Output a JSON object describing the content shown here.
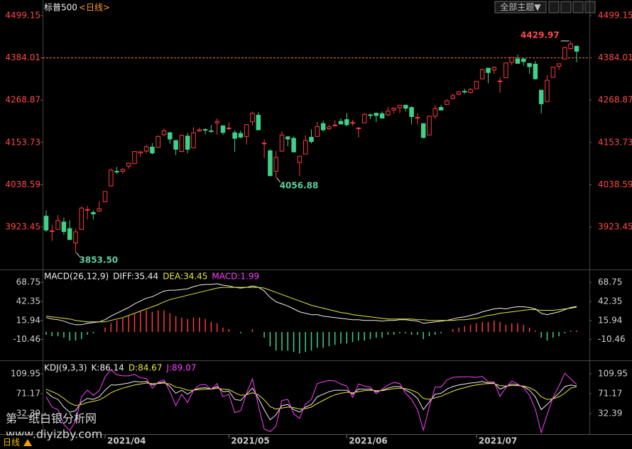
{
  "header": {
    "symbol": "标普500",
    "period": "<日线>",
    "theme_button": "全部主题▼"
  },
  "period_tab": "日线",
  "watermark": [
    "第一纸白银分析网",
    "www.diyizby.com"
  ],
  "chart_data": [
    {
      "type": "candlestick",
      "open": [
        3953,
        3913,
        3917,
        3937,
        3919,
        3880,
        3917,
        3969,
        3963,
        3967,
        3992,
        4035,
        4075,
        4075,
        4089,
        4096,
        4125,
        4130,
        4141,
        4140,
        4175,
        4180,
        4159,
        4129,
        4171,
        4139,
        4185,
        4189,
        4185,
        4207,
        4199,
        4191,
        4180,
        4178,
        4170,
        4210,
        4228,
        4150,
        4131,
        4075,
        4130,
        4169,
        4165,
        4099,
        4122,
        4168,
        4170,
        4205,
        4191,
        4201,
        4211,
        4216,
        4207,
        4191,
        4207,
        4229,
        4233,
        4232,
        4229,
        4242,
        4248,
        4255,
        4249,
        4220,
        4205,
        4174,
        4225,
        4249,
        4257,
        4274,
        4285,
        4293,
        4290,
        4300,
        4327,
        4356,
        4351,
        4321,
        4330,
        4372,
        4381,
        4381,
        4369,
        4367,
        4296,
        4265,
        4331,
        4361,
        4381,
        4409,
        4416
      ],
      "high": [
        3969,
        3930,
        3956,
        3949,
        3942,
        3919,
        3979,
        3981,
        3969,
        3994,
        4021,
        4083,
        4087,
        4084,
        4098,
        4129,
        4131,
        4148,
        4152,
        4173,
        4191,
        4183,
        4160,
        4175,
        4180,
        4195,
        4194,
        4193,
        4201,
        4219,
        4199,
        4209,
        4187,
        4186,
        4202,
        4238,
        4236,
        4162,
        4135,
        4131,
        4184,
        4171,
        4170,
        4117,
        4173,
        4189,
        4210,
        4213,
        4202,
        4214,
        4219,
        4234,
        4216,
        4196,
        4234,
        4232,
        4236,
        4238,
        4250,
        4249,
        4255,
        4257,
        4252,
        4233,
        4206,
        4226,
        4256,
        4256,
        4271,
        4287,
        4293,
        4300,
        4302,
        4320,
        4355,
        4357,
        4362,
        4331,
        4372,
        4386,
        4393,
        4382,
        4369,
        4376,
        4297,
        4337,
        4359,
        4369,
        4415,
        4429.97,
        4416
      ],
      "low": [
        3910,
        3886,
        3917,
        3902,
        3889,
        3853.5,
        3917,
        3944,
        3944,
        3964,
        3992,
        4035,
        4068,
        4069,
        4082,
        4095,
        4114,
        4125,
        4121,
        4140,
        4171,
        4150,
        4119,
        4127,
        4124,
        4139,
        4182,
        4176,
        4181,
        4175,
        4174,
        4188,
        4128,
        4165,
        4148,
        4201,
        4188,
        4111,
        4062,
        4056.88,
        4130,
        4143,
        4126,
        4062,
        4122,
        4151,
        4170,
        4183,
        4188,
        4197,
        4204,
        4197,
        4199,
        4167,
        4207,
        4217,
        4209,
        4219,
        4225,
        4233,
        4234,
        4238,
        4203,
        4203,
        4165,
        4174,
        4218,
        4241,
        4257,
        4271,
        4282,
        4286,
        4287,
        4300,
        4325,
        4315,
        4340,
        4289,
        4330,
        4364,
        4368,
        4363,
        4341,
        4325,
        4233,
        4265,
        4331,
        4351,
        4381,
        4407,
        4372
      ],
      "close": [
        3915,
        3913,
        3941,
        3911,
        3889,
        3910,
        3975,
        3971,
        3959,
        3973,
        4020,
        4078,
        4074,
        4080,
        4097,
        4129,
        4128,
        4142,
        4125,
        4170,
        4185,
        4163,
        4135,
        4173,
        4135,
        4180,
        4188,
        4187,
        4183,
        4211,
        4181,
        4193,
        4165,
        4168,
        4202,
        4233,
        4188,
        4152,
        4063,
        4113,
        4174,
        4163,
        4128,
        4116,
        4159,
        4156,
        4197,
        4188,
        4196,
        4201,
        4204,
        4202,
        4208,
        4193,
        4230,
        4227,
        4227,
        4220,
        4239,
        4247,
        4255,
        4247,
        4224,
        4222,
        4167,
        4225,
        4246,
        4242,
        4267,
        4281,
        4291,
        4292,
        4298,
        4320,
        4352,
        4344,
        4358,
        4321,
        4370,
        4385,
        4369,
        4374,
        4360,
        4327,
        4259,
        4323,
        4359,
        4368,
        4412,
        4422,
        4402
      ],
      "up_color": "#ff3b3b",
      "down_color": "#3fd08a",
      "tick_color": "#ff4848",
      "ylim": [
        3807.5,
        4514.6
      ],
      "yticks": [
        3923.45,
        4038.59,
        4153.73,
        4268.87,
        4384.01,
        4499.15
      ],
      "reference_line": 4384.01,
      "reference_color": "#ff7a3a",
      "annotations": [
        {
          "value": 4429.97,
          "label": "4429.97",
          "at": "high",
          "color": "#ff4848"
        },
        {
          "value": 4056.88,
          "label": "4056.88",
          "at": "low",
          "color": "#5fd0a0"
        },
        {
          "value": 3853.5,
          "label": "3853.50",
          "at": "low",
          "color": "#5fd0a0"
        }
      ]
    },
    {
      "type": "combo",
      "title": "MACD(26,12,9)",
      "tick_color": "#d0d0d0",
      "ylim": [
        -39.5,
        85.75
      ],
      "yticks": [
        -10.46,
        15.94,
        42.35,
        68.75
      ],
      "series": [
        {
          "name": "DIFF:35.44",
          "kind": "line",
          "color": "#f0f0f0",
          "values": [
            20,
            18,
            17,
            15,
            12,
            10,
            10,
            12,
            13,
            14,
            17,
            22,
            26,
            30,
            34,
            39,
            43,
            47,
            49,
            53,
            57,
            58,
            58,
            59,
            60,
            63,
            65,
            66,
            66,
            67,
            65,
            64,
            62,
            61,
            62,
            64,
            62,
            57,
            48,
            42,
            39,
            36,
            32,
            28,
            26,
            24,
            24,
            22,
            21,
            20,
            19,
            18,
            17,
            17,
            16,
            16,
            16,
            15,
            16,
            16,
            17,
            17,
            16,
            15,
            12,
            13,
            14,
            15,
            16,
            18,
            20,
            21,
            23,
            25,
            28,
            30,
            32,
            33,
            32,
            34,
            35,
            35,
            34,
            32,
            26,
            24,
            26,
            28,
            31,
            34,
            35.44
          ]
        },
        {
          "name": "DEA:34.45",
          "kind": "line",
          "color": "#e8e83a",
          "values": [
            22,
            21,
            20,
            19,
            18,
            16,
            15,
            14,
            14,
            14,
            14,
            16,
            18,
            20,
            23,
            26,
            29,
            32,
            35,
            38,
            42,
            45,
            47,
            49,
            51,
            53,
            55,
            57,
            59,
            61,
            62,
            62,
            62,
            62,
            62,
            62,
            62,
            61,
            58,
            55,
            52,
            49,
            46,
            43,
            40,
            37,
            35,
            33,
            31,
            29,
            27,
            26,
            24,
            23,
            22,
            21,
            20,
            19,
            18,
            18,
            18,
            18,
            18,
            17,
            17,
            16,
            16,
            16,
            16,
            16,
            17,
            17,
            18,
            19,
            21,
            23,
            24,
            26,
            27,
            28,
            29,
            30,
            31,
            31,
            30,
            30,
            30,
            31,
            32,
            33,
            34.45
          ]
        },
        {
          "name": "MACD:1.99",
          "kind": "bar",
          "color": "#ff40ff",
          "up_color": "#ff3b3b",
          "down_color": "#3fd08a",
          "values": [
            -4,
            -6,
            -6,
            -8,
            -12,
            -12,
            -10,
            -4,
            -2,
            0,
            6,
            12,
            16,
            20,
            22,
            26,
            28,
            30,
            28,
            30,
            30,
            26,
            22,
            20,
            18,
            20,
            20,
            18,
            14,
            12,
            6,
            4,
            0,
            -2,
            0,
            4,
            0,
            -8,
            -20,
            -26,
            -26,
            -26,
            -28,
            -30,
            -28,
            -26,
            -22,
            -22,
            -20,
            -18,
            -16,
            -16,
            -14,
            -12,
            -12,
            -10,
            -8,
            -8,
            -4,
            -4,
            -2,
            -2,
            -4,
            -4,
            -10,
            -6,
            -4,
            -2,
            0,
            4,
            6,
            8,
            10,
            12,
            14,
            14,
            16,
            14,
            10,
            12,
            12,
            10,
            6,
            2,
            -8,
            -12,
            -8,
            -6,
            -2,
            2,
            1.99
          ]
        }
      ]
    },
    {
      "type": "line",
      "title": "KDJ(9,3,3)",
      "tick_color": "#d0d0d0",
      "ylim": [
        -7.8,
        133.5
      ],
      "yticks": [
        32.39,
        71.17,
        109.95
      ],
      "categories": [
        null,
        null,
        null,
        null,
        null,
        null,
        null,
        null,
        null,
        null,
        "2021/04",
        null,
        null,
        null,
        null,
        null,
        null,
        null,
        null,
        null,
        null,
        null,
        null,
        null,
        null,
        null,
        null,
        null,
        null,
        null,
        null,
        "2021/05",
        null,
        null,
        null,
        null,
        null,
        null,
        null,
        null,
        null,
        null,
        null,
        null,
        null,
        null,
        null,
        null,
        null,
        null,
        null,
        "2021/06",
        null,
        null,
        null,
        null,
        null,
        null,
        null,
        null,
        null,
        null,
        null,
        null,
        null,
        null,
        null,
        null,
        null,
        null,
        null,
        null,
        null,
        "2021/07",
        null,
        null,
        null,
        null,
        null,
        null,
        null,
        null,
        null,
        null,
        null,
        null,
        null,
        null,
        null,
        null,
        null
      ],
      "series": [
        {
          "name": "K:86.14",
          "color": "#f0f0f0",
          "values": [
            75,
            65,
            60,
            45,
            35,
            38,
            55,
            62,
            60,
            65,
            78,
            88,
            88,
            90,
            92,
            95,
            94,
            95,
            88,
            92,
            94,
            85,
            72,
            78,
            70,
            78,
            82,
            83,
            80,
            85,
            75,
            76,
            60,
            58,
            70,
            82,
            62,
            40,
            20,
            30,
            48,
            50,
            40,
            35,
            45,
            50,
            65,
            70,
            75,
            78,
            78,
            78,
            70,
            80,
            80,
            80,
            75,
            78,
            82,
            85,
            85,
            78,
            72,
            62,
            40,
            55,
            70,
            72,
            80,
            85,
            88,
            90,
            92,
            93,
            95,
            92,
            92,
            80,
            85,
            90,
            88,
            85,
            78,
            65,
            40,
            50,
            62,
            72,
            85,
            88,
            86.14
          ]
        },
        {
          "name": "D:84.67",
          "color": "#e8e83a",
          "values": [
            80,
            75,
            70,
            62,
            53,
            48,
            50,
            54,
            56,
            59,
            65,
            73,
            78,
            82,
            85,
            88,
            90,
            92,
            91,
            91,
            92,
            90,
            84,
            82,
            78,
            78,
            79,
            80,
            80,
            82,
            80,
            79,
            73,
            68,
            69,
            73,
            69,
            59,
            46,
            41,
            43,
            45,
            44,
            41,
            42,
            45,
            52,
            58,
            64,
            69,
            72,
            74,
            73,
            75,
            77,
            78,
            77,
            77,
            79,
            81,
            82,
            81,
            78,
            73,
            62,
            60,
            63,
            66,
            71,
            76,
            80,
            83,
            86,
            88,
            90,
            91,
            91,
            87,
            86,
            87,
            87,
            86,
            83,
            77,
            65,
            60,
            61,
            65,
            72,
            82,
            84.67
          ]
        },
        {
          "name": "J:89.07",
          "color": "#ff40ff",
          "values": [
            65,
            45,
            40,
            11,
            -1,
            18,
            65,
            78,
            68,
            77,
            104,
            118,
            108,
            106,
            106,
            109,
            102,
            101,
            82,
            94,
            98,
            75,
            48,
            70,
            54,
            78,
            88,
            89,
            80,
            91,
            65,
            70,
            34,
            38,
            72,
            100,
            48,
            2,
            -3,
            8,
            58,
            60,
            32,
            23,
            51,
            60,
            91,
            94,
            97,
            96,
            90,
            86,
            64,
            90,
            86,
            84,
            71,
            80,
            88,
            93,
            91,
            72,
            60,
            40,
            0,
            45,
            84,
            84,
            98,
            103,
            104,
            104,
            104,
            103,
            105,
            94,
            94,
            66,
            83,
            96,
            90,
            83,
            68,
            41,
            -5,
            30,
            64,
            86,
            111,
            100,
            89.07
          ]
        }
      ]
    }
  ]
}
